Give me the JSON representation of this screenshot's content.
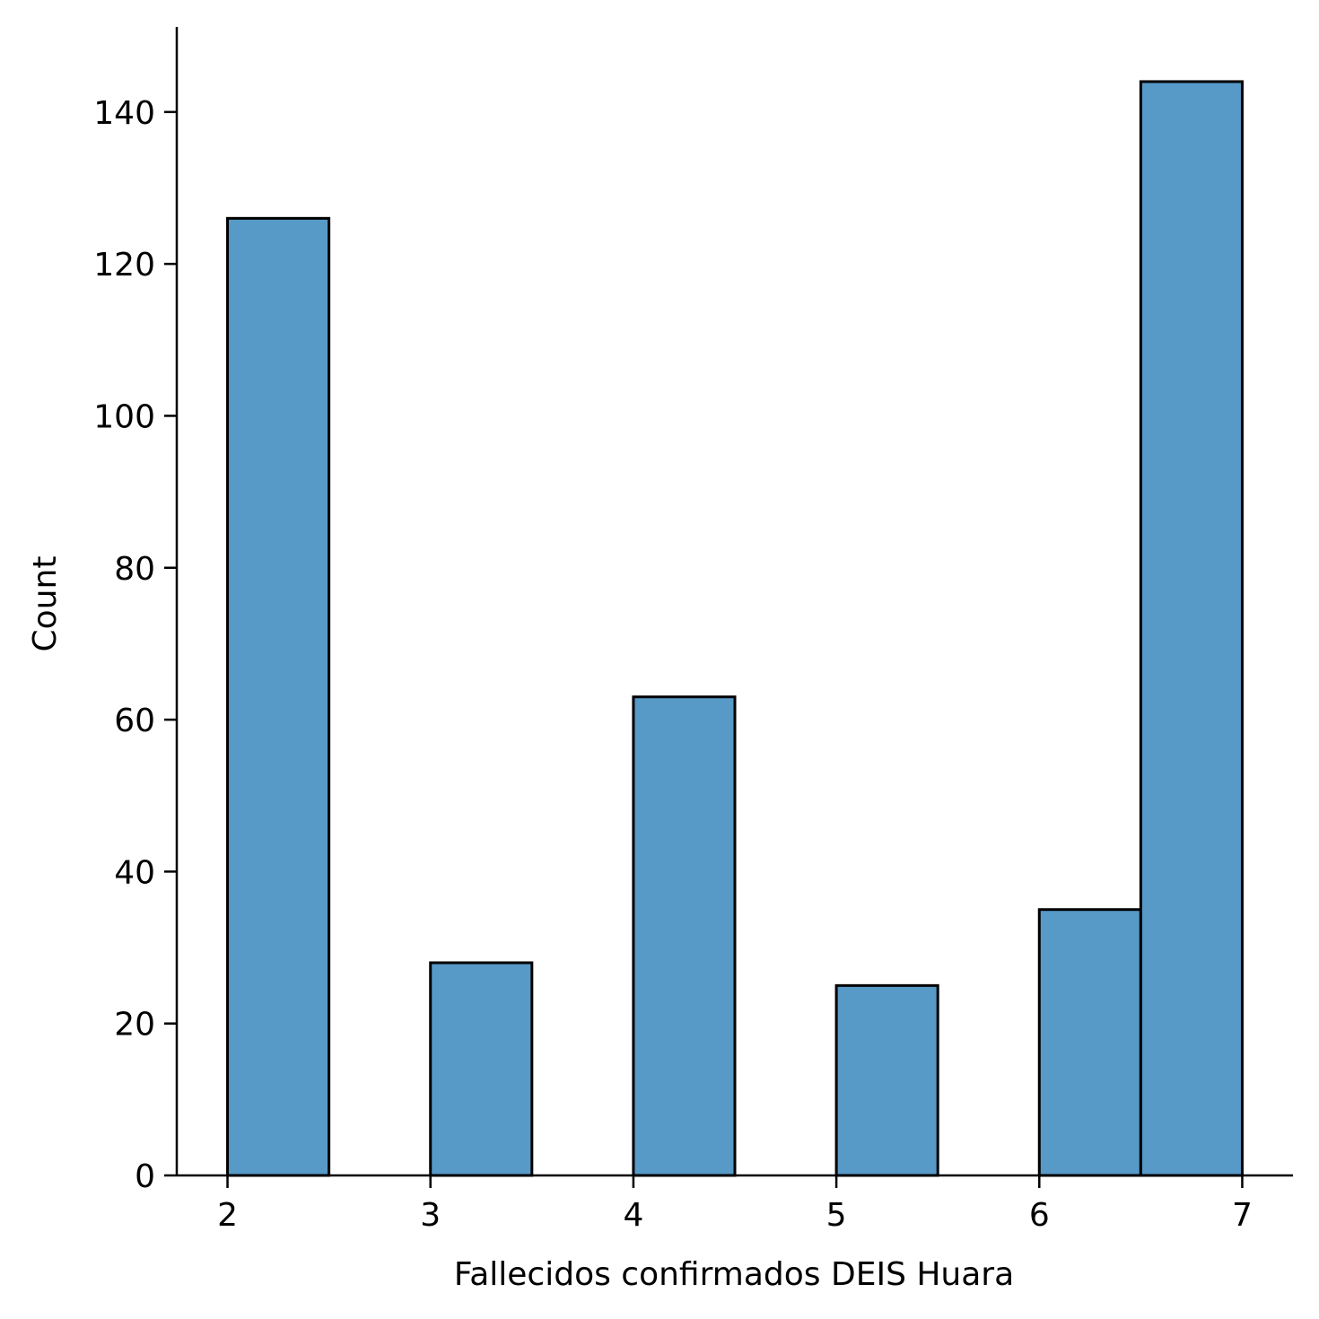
{
  "chart_data": {
    "type": "bar",
    "title": "",
    "xlabel": "Fallecidos confirmados DEIS Huara",
    "ylabel": "Count",
    "xlim": [
      1.75,
      7.25
    ],
    "ylim": [
      0,
      151.2
    ],
    "xticks": [
      2,
      3,
      4,
      5,
      6,
      7
    ],
    "yticks": [
      0,
      20,
      40,
      60,
      80,
      100,
      120,
      140
    ],
    "bins": [
      {
        "x0": 2.0,
        "x1": 2.5,
        "count": 126
      },
      {
        "x0": 2.5,
        "x1": 3.0,
        "count": 0
      },
      {
        "x0": 3.0,
        "x1": 3.5,
        "count": 28
      },
      {
        "x0": 3.5,
        "x1": 4.0,
        "count": 0
      },
      {
        "x0": 4.0,
        "x1": 4.5,
        "count": 63
      },
      {
        "x0": 4.5,
        "x1": 5.0,
        "count": 0
      },
      {
        "x0": 5.0,
        "x1": 5.5,
        "count": 25
      },
      {
        "x0": 5.5,
        "x1": 6.0,
        "count": 0
      },
      {
        "x0": 6.0,
        "x1": 6.5,
        "count": 35
      },
      {
        "x0": 6.5,
        "x1": 7.0,
        "count": 144
      }
    ],
    "bar_color": "#5799c7",
    "edge_color": "#000000",
    "grid": false
  }
}
